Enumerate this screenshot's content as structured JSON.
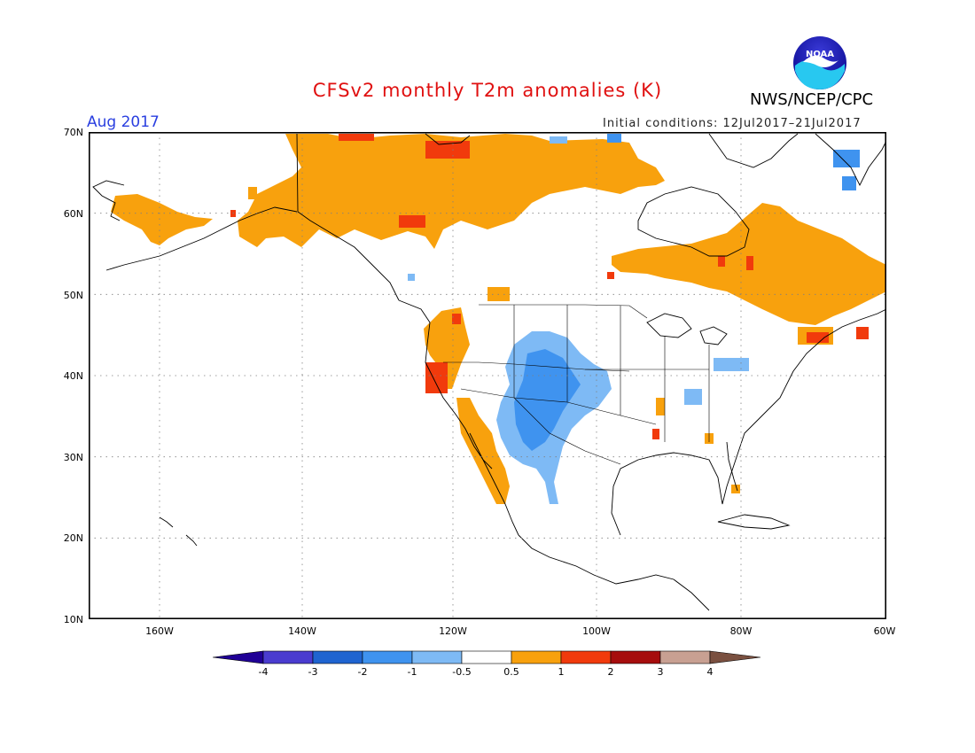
{
  "title": "CFSv2 monthly T2m anomalies (K)",
  "agency": "NWS/NCEP/CPC",
  "logo_text": "NOAA",
  "valid_month": "Aug 2017",
  "initial_conditions": "Initial conditions: 12Jul2017–21Jul2017",
  "map": {
    "lon_range": [
      -172,
      -60
    ],
    "lat_range": [
      10,
      70
    ],
    "lat_labels": [
      "10N",
      "20N",
      "30N",
      "40N",
      "50N",
      "60N",
      "70N"
    ],
    "lon_labels": [
      "160W",
      "140W",
      "120W",
      "100W",
      "80W",
      "60W"
    ],
    "gridlines": "dotted"
  },
  "legend": {
    "boundaries": [
      "-4",
      "-3",
      "-2",
      "-1",
      "-0.5",
      "0.5",
      "1",
      "2",
      "3",
      "4"
    ],
    "colors": [
      "#200096",
      "#4a3ccf",
      "#1f64d0",
      "#3f93ef",
      "#7ebaf5",
      "#ffffff",
      "#f8a10d",
      "#f13a0c",
      "#a60d0d",
      "#c8a092",
      "#7a5040"
    ]
  },
  "anomaly_regions": [
    {
      "name": "Northern Canada / Yukon warm",
      "class": "0.5-1"
    },
    {
      "name": "Southern Alaska coast warm",
      "class": "0.5-1"
    },
    {
      "name": "Eastern Canada / Quebec warm",
      "class": "0.5-1"
    },
    {
      "name": "US West Coast warm",
      "class": "0.5-1"
    },
    {
      "name": "Northern California warm",
      "class": "1-2"
    },
    {
      "name": "Baja California / Southwest warm",
      "class": "0.5-1"
    },
    {
      "name": "Rocky Mountains / Southwest cool",
      "class": "-1 to -0.5"
    },
    {
      "name": "Colorado cooler core",
      "class": "-2 to -1"
    },
    {
      "name": "Canadian Arctic cool",
      "class": "-2 to -1"
    }
  ]
}
